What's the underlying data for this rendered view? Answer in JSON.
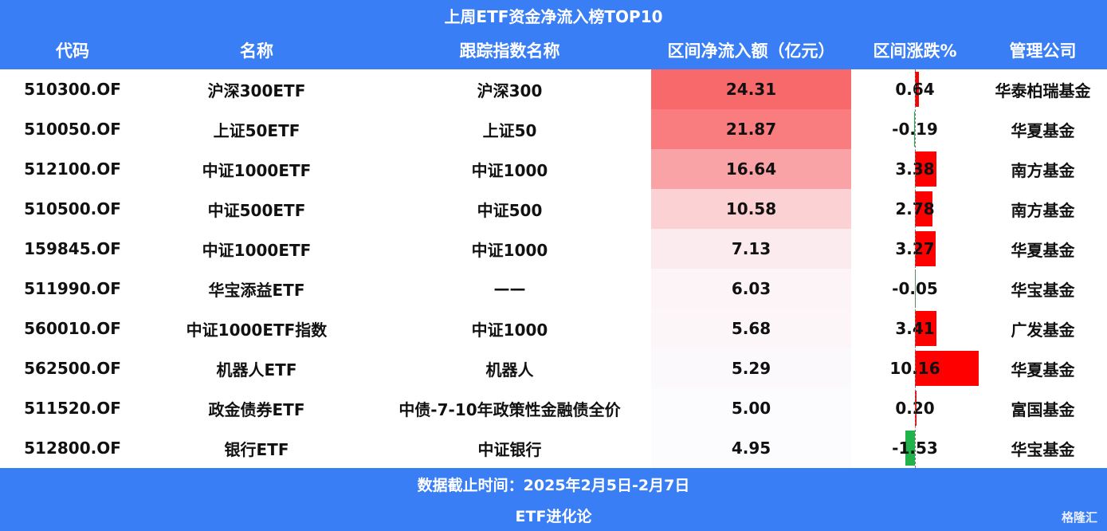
{
  "title": "上周ETF资金净流入榜TOP10",
  "table": {
    "header": [
      "代码",
      "名称",
      "跟踪指数名称",
      "区间净流入额（亿元）",
      "区间涨跌%",
      "管理公司"
    ],
    "rows": [
      [
        "510300.OF",
        "沪深300ETF",
        "沪深300",
        "24.31",
        "0.64",
        "华泰柏瑞基金"
      ],
      [
        "510050.OF",
        "上证50ETF",
        "上证50",
        "21.87",
        "-0.19",
        "华夏基金"
      ],
      [
        "512100.OF",
        "中证1000ETF",
        "中证1000",
        "16.64",
        "3.38",
        "南方基金"
      ],
      [
        "510500.OF",
        "中证500ETF",
        "中证500",
        "10.58",
        "2.78",
        "南方基金"
      ],
      [
        "159845.OF",
        "中证1000ETF",
        "中证1000",
        "7.13",
        "3.27",
        "华夏基金"
      ],
      [
        "511990.OF",
        "华宝添益ETF",
        "——",
        "6.03",
        "-0.05",
        "华宝基金"
      ],
      [
        "560010.OF",
        "中证1000ETF指数",
        "中证1000",
        "5.68",
        "3.41",
        "广发基金"
      ],
      [
        "562500.OF",
        "机器人ETF",
        "机器人",
        "5.29",
        "10.16",
        "华夏基金"
      ],
      [
        "511520.OF",
        "政金债券ETF",
        "中债-7-10年政策性金融债全价",
        "5.00",
        "0.20",
        "富国基金"
      ],
      [
        "512800.OF",
        "银行ETF",
        "中证银行",
        "4.95",
        "-1.53",
        "华宝基金"
      ]
    ]
  },
  "footer": {
    "note": "数据截止时间：2025年2月5日-2月7日",
    "source": "ETF进化论"
  },
  "watermark": "格隆汇"
}
